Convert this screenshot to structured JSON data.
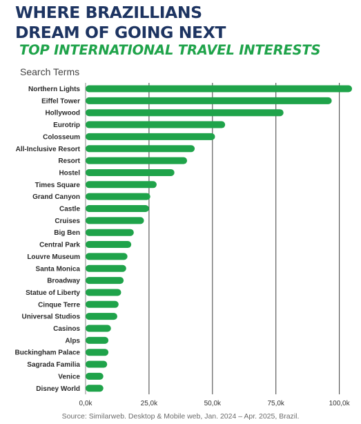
{
  "header": {
    "title_line1": "WHERE BRAZILLIANS",
    "title_line2": "DREAM OF GOING NEXT",
    "subtitle": "TOP INTERNATIONAL TRAVEL INTERESTS"
  },
  "chart_data": {
    "type": "bar",
    "orientation": "horizontal",
    "ylabel": "Search Terms",
    "xlabel": "",
    "categories": [
      "Northern Lights",
      "Eiffel Tower",
      "Hollywood",
      "Eurotrip",
      "Colosseum",
      "All-Inclusive Resort",
      "Resort",
      "Hostel",
      "Times Square",
      "Grand Canyon",
      "Castle",
      "Cruises",
      "Big Ben",
      "Central Park",
      "Louvre Museum",
      "Santa Monica",
      "Broadway",
      "Statue of Liberty",
      "Cinque Terre",
      "Universal Studios",
      "Casinos",
      "Alps",
      "Buckingham Palace",
      "Sagrada Familia",
      "Venice",
      "Disney World"
    ],
    "values": [
      105000,
      97000,
      78000,
      55000,
      51000,
      43000,
      40000,
      35000,
      28000,
      25500,
      25000,
      23000,
      19000,
      18000,
      16500,
      16000,
      15000,
      14000,
      13000,
      12500,
      10000,
      9000,
      9000,
      8500,
      7000,
      7000
    ],
    "xlim": [
      0,
      105000
    ],
    "xticks": [
      0,
      25000,
      50000,
      75000,
      100000
    ],
    "xtick_labels": [
      "0,0k",
      "25,0k",
      "50,0k",
      "75,0k",
      "100,0k"
    ],
    "grid": true,
    "bar_color": "#1fa34a"
  },
  "source": "Source: Similarweb. Desktop & Mobile web, Jan. 2024 – Apr. 2025, Brazil."
}
